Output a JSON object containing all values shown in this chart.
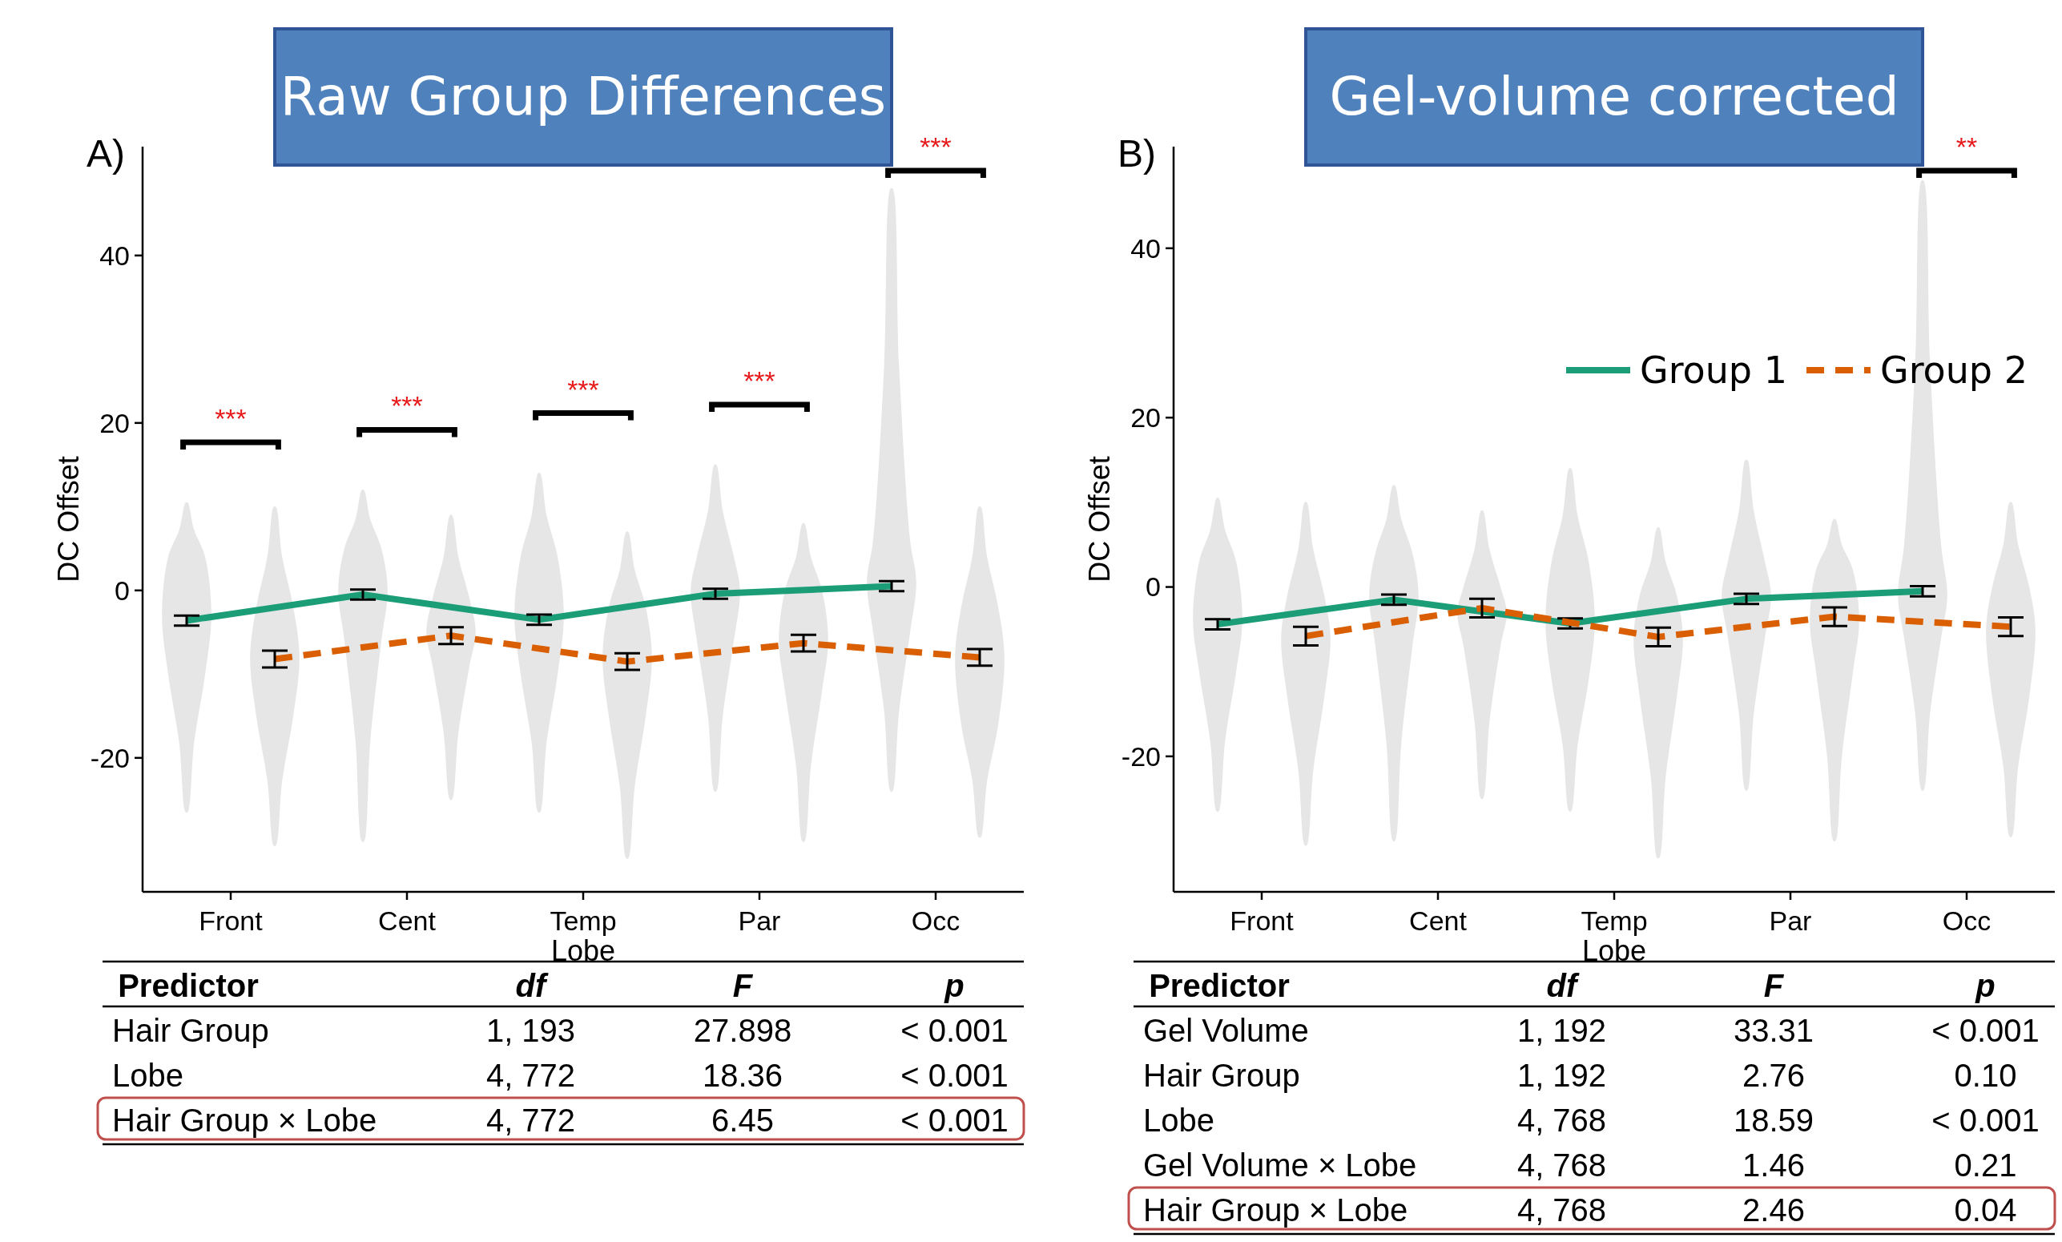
{
  "chart_data": [
    {
      "type": "line",
      "title": "Raw Group Differences",
      "xlabel": "Lobe",
      "ylabel": "DC Offset",
      "categories": [
        "Front",
        "Cent",
        "Temp",
        "Par",
        "Occ"
      ],
      "ylim": [
        -36,
        53
      ],
      "yticks": [
        -20,
        0,
        20,
        40
      ],
      "legend": false,
      "annotations": [
        "A)",
        "***",
        "***",
        "***",
        "***",
        "***"
      ],
      "series": [
        {
          "type": "box",
          "color": "#e6e6e6",
          "boxes": [
            {
              "low": -26.5,
              "q1": -10,
              "median": -3,
              "q3": 4,
              "high": 10.5
            },
            {
              "low": -30,
              "q1": -6,
              "median": 0,
              "q3": 5,
              "high": 12
            },
            {
              "low": -26.5,
              "q1": -10,
              "median": -3,
              "q3": 4,
              "high": 14
            },
            {
              "low": -24,
              "q1": -6,
              "median": 0,
              "q3": 4,
              "high": 15
            },
            {
              "low": -24,
              "q1": -5,
              "median": 1,
              "q3": 6,
              "high": 48
            }
          ]
        },
        {
          "type": "box",
          "color": "#e6e6e6",
          "boxes": [
            {
              "low": -30.5,
              "q1": -15,
              "median": -8,
              "q3": -2,
              "high": 10
            },
            {
              "low": -25,
              "q1": -9,
              "median": -5,
              "q3": -1,
              "high": 9
            },
            {
              "low": -32,
              "q1": -15,
              "median": -8,
              "q3": -2,
              "high": 7
            },
            {
              "low": -30,
              "q1": -12,
              "median": -6,
              "q3": 0,
              "high": 8
            },
            {
              "low": -29.5,
              "q1": -16,
              "median": -8,
              "q3": -2,
              "high": 10
            }
          ]
        },
        {
          "type": "line",
          "color": "#1b9e77",
          "line_style": "solid",
          "values": [
            -3.6,
            -0.5,
            -3.5,
            -0.4,
            0.5
          ],
          "errors": [
            0.6,
            0.6,
            0.6,
            0.6,
            0.6
          ]
        },
        {
          "type": "line",
          "color": "#d95f02",
          "line_style": "dashed",
          "values": [
            -8.2,
            -5.4,
            -8.5,
            -6.3,
            -8.0
          ],
          "errors": [
            1.0,
            1.0,
            1.0,
            1.0,
            1.0
          ]
        }
      ]
    },
    {
      "type": "other",
      "categories": [
        "Predictor",
        "df",
        "F",
        "p"
      ],
      "cell_labels": [
        [
          "Hair Group",
          "1, 193",
          "27.898",
          "< 0.001"
        ],
        [
          "Lobe",
          "4, 772",
          "18.36",
          "< 0.001"
        ],
        [
          "Hair Group × Lobe",
          "4, 772",
          "6.45",
          "< 0.001"
        ]
      ]
    },
    {
      "type": "line",
      "title": "Gel-volume corrected",
      "xlabel": "Lobe",
      "ylabel": "DC Offset",
      "categories": [
        "Front",
        "Cent",
        "Temp",
        "Par",
        "Occ"
      ],
      "ylim": [
        -36,
        52
      ],
      "yticks": [
        -20,
        0,
        20,
        40
      ],
      "legend": "top right",
      "annotations": [
        "B)",
        "**"
      ],
      "series": [
        {
          "type": "box",
          "color": "#e6e6e6",
          "boxes": [
            {
              "low": -26.5,
              "q1": -10,
              "median": -4,
              "q3": 3,
              "high": 10.5
            },
            {
              "low": -30,
              "q1": -7,
              "median": -1,
              "q3": 4,
              "high": 12
            },
            {
              "low": -26.5,
              "q1": -11,
              "median": -4,
              "q3": 3,
              "high": 14
            },
            {
              "low": -24,
              "q1": -6,
              "median": -1,
              "q3": 3,
              "high": 15
            },
            {
              "low": -24,
              "q1": -6,
              "median": -1,
              "q3": 5,
              "high": 48
            }
          ]
        },
        {
          "type": "box",
          "color": "#e6e6e6",
          "boxes": [
            {
              "low": -30.5,
              "q1": -13,
              "median": -6,
              "q3": -1,
              "high": 10
            },
            {
              "low": -25,
              "q1": -7,
              "median": -3,
              "q3": 0,
              "high": 9
            },
            {
              "low": -32,
              "q1": -13,
              "median": -6,
              "q3": -1,
              "high": 7
            },
            {
              "low": -30,
              "q1": -10,
              "median": -4,
              "q3": 2,
              "high": 8
            },
            {
              "low": -29.5,
              "q1": -13,
              "median": -5,
              "q3": 0,
              "high": 10
            }
          ]
        },
        {
          "type": "line",
          "name": "Group 1",
          "color": "#1b9e77",
          "line_style": "solid",
          "values": [
            -4.4,
            -1.5,
            -4.3,
            -1.4,
            -0.5
          ],
          "errors": [
            0.6,
            0.6,
            0.6,
            0.6,
            0.6
          ]
        },
        {
          "type": "line",
          "name": "Group 2",
          "color": "#d95f02",
          "line_style": "dashed",
          "values": [
            -5.8,
            -2.5,
            -5.9,
            -3.5,
            -4.7
          ],
          "errors": [
            1.1,
            1.1,
            1.1,
            1.1,
            1.1
          ]
        }
      ]
    },
    {
      "type": "other",
      "categories": [
        "Predictor",
        "df",
        "F",
        "p"
      ],
      "cell_labels": [
        [
          "Gel Volume",
          "1, 192",
          "33.31",
          "< 0.001"
        ],
        [
          "Hair Group",
          "1, 192",
          "2.76",
          "0.10"
        ],
        [
          "Lobe",
          "4, 768",
          "18.59",
          "< 0.001"
        ],
        [
          "Gel Volume × Lobe",
          "4, 768",
          "1.46",
          "0.21"
        ],
        [
          "Hair Group × Lobe",
          "4, 768",
          "2.46",
          "0.04"
        ]
      ]
    }
  ]
}
